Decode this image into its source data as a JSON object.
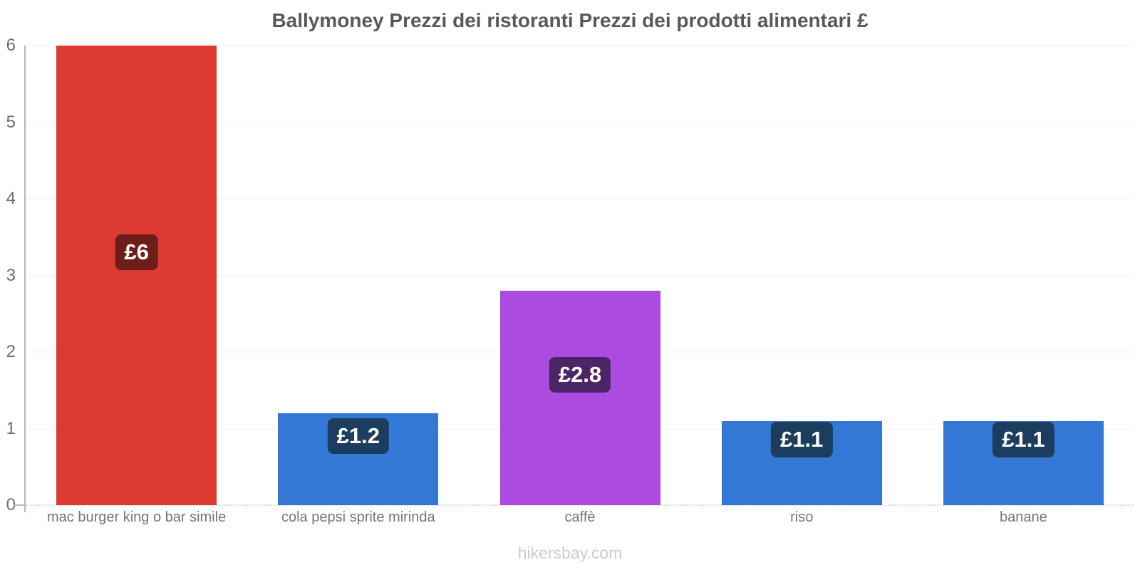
{
  "watermark": "hikersbay.com",
  "chart_data": {
    "type": "bar",
    "title": "Ballymoney Prezzi dei ristoranti Prezzi dei prodotti alimentari £",
    "categories": [
      "mac burger king o bar simile",
      "cola pepsi sprite mirinda",
      "caffè",
      "riso",
      "banane"
    ],
    "values": [
      6,
      1.2,
      2.8,
      1.1,
      1.1
    ],
    "annotations": [
      "£6",
      "£1.2",
      "£2.8",
      "£1.1",
      "£1.1"
    ],
    "bar_colors": [
      "#dc3a33",
      "#3478d6",
      "#ac4bdf",
      "#3478d6",
      "#3478d6"
    ],
    "annotation_bg_colors": [
      "#6e1e1a",
      "#1d3d5e",
      "#4b2566",
      "#1d3d5e",
      "#1d3d5e"
    ],
    "currency": "£",
    "xlabel": "",
    "ylabel": "",
    "ylim": [
      0,
      6
    ],
    "yticks": [
      0,
      1,
      2,
      3,
      4,
      5,
      6
    ],
    "grid": true,
    "legend": "none",
    "colors": {
      "title": "#58595b",
      "axis_text": "#6e6e6e",
      "category_text": "#757575",
      "gridline": "#f2f2f2",
      "axis_line": "#b6b6b6",
      "annotation_text": "#ffffff",
      "watermark": "#c9ccd6",
      "background": "#ffffff"
    }
  }
}
